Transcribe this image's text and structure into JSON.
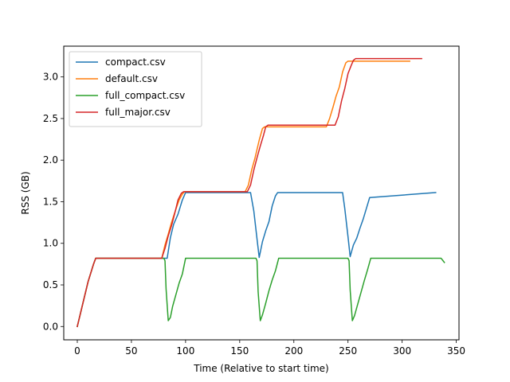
{
  "chart_data": {
    "type": "line",
    "title": "",
    "xlabel": "Time (Relative to start time)",
    "ylabel": "RSS (GB)",
    "xlim": [
      -12.5,
      352.5
    ],
    "ylim": [
      -0.16,
      3.37
    ],
    "xticks": [
      0,
      50,
      100,
      150,
      200,
      250,
      300,
      350
    ],
    "yticks": [
      0.0,
      0.5,
      1.0,
      1.5,
      2.0,
      2.5,
      3.0
    ],
    "xtick_labels": [
      "0",
      "50",
      "100",
      "150",
      "200",
      "250",
      "300",
      "350"
    ],
    "ytick_labels": [
      "0.0",
      "0.5",
      "1.0",
      "1.5",
      "2.0",
      "2.5",
      "3.0"
    ],
    "grid": false,
    "legend_location": "upper-left",
    "series": [
      {
        "name": "compact.csv",
        "color": "#1f77b4",
        "x": [
          0,
          5,
          10,
          15,
          17,
          78,
          80,
          83,
          86,
          89,
          93,
          97,
          100,
          158,
          160,
          163,
          166,
          168,
          171,
          174,
          177,
          180,
          183,
          185,
          245,
          247,
          250,
          252,
          255,
          258,
          261,
          264,
          267,
          270,
          331
        ],
        "y": [
          0.0,
          0.27,
          0.54,
          0.75,
          0.82,
          0.82,
          0.82,
          0.82,
          1.07,
          1.23,
          1.35,
          1.52,
          1.61,
          1.61,
          1.61,
          1.39,
          1.05,
          0.83,
          1.02,
          1.15,
          1.26,
          1.45,
          1.57,
          1.61,
          1.61,
          1.42,
          1.08,
          0.84,
          0.98,
          1.06,
          1.18,
          1.29,
          1.42,
          1.55,
          1.61
        ]
      },
      {
        "name": "default.csv",
        "color": "#ff7f0e",
        "x": [
          0,
          5,
          10,
          15,
          17,
          78,
          81,
          84,
          87,
          90,
          94,
          97,
          99,
          155,
          158,
          161,
          164,
          168,
          171,
          173,
          230,
          233,
          236,
          239,
          242,
          245,
          248,
          250,
          307
        ],
        "y": [
          0.0,
          0.27,
          0.54,
          0.75,
          0.82,
          0.82,
          0.98,
          1.11,
          1.25,
          1.37,
          1.52,
          1.59,
          1.62,
          1.62,
          1.7,
          1.88,
          2.02,
          2.24,
          2.38,
          2.4,
          2.4,
          2.5,
          2.63,
          2.77,
          2.88,
          3.06,
          3.17,
          3.19,
          3.19
        ]
      },
      {
        "name": "full_compact.csv",
        "color": "#2ca02c",
        "x": [
          0,
          5,
          10,
          15,
          17,
          80,
          81,
          82,
          84,
          86,
          88,
          91,
          94,
          97,
          100,
          165,
          166,
          167,
          169,
          171,
          174,
          177,
          180,
          183,
          186,
          250,
          251,
          252,
          254,
          256,
          259,
          262,
          265,
          268,
          271,
          336,
          339
        ],
        "y": [
          0.0,
          0.27,
          0.54,
          0.75,
          0.82,
          0.82,
          0.79,
          0.45,
          0.07,
          0.11,
          0.24,
          0.38,
          0.52,
          0.63,
          0.82,
          0.82,
          0.79,
          0.42,
          0.07,
          0.14,
          0.28,
          0.43,
          0.56,
          0.67,
          0.82,
          0.82,
          0.79,
          0.44,
          0.07,
          0.13,
          0.27,
          0.41,
          0.55,
          0.68,
          0.82,
          0.82,
          0.77
        ]
      },
      {
        "name": "full_major.csv",
        "color": "#d62728",
        "x": [
          0,
          5,
          10,
          15,
          17,
          78,
          81,
          84,
          87,
          90,
          93,
          96,
          98,
          157,
          160,
          163,
          166,
          169,
          172,
          174,
          176,
          238,
          241,
          244,
          247,
          250,
          253,
          255,
          257,
          318
        ],
        "y": [
          0.0,
          0.27,
          0.54,
          0.75,
          0.82,
          0.82,
          0.94,
          1.09,
          1.21,
          1.36,
          1.52,
          1.6,
          1.62,
          1.62,
          1.7,
          1.88,
          2.03,
          2.17,
          2.3,
          2.4,
          2.42,
          2.42,
          2.52,
          2.71,
          2.86,
          3.04,
          3.14,
          3.2,
          3.22,
          3.22
        ]
      }
    ]
  }
}
